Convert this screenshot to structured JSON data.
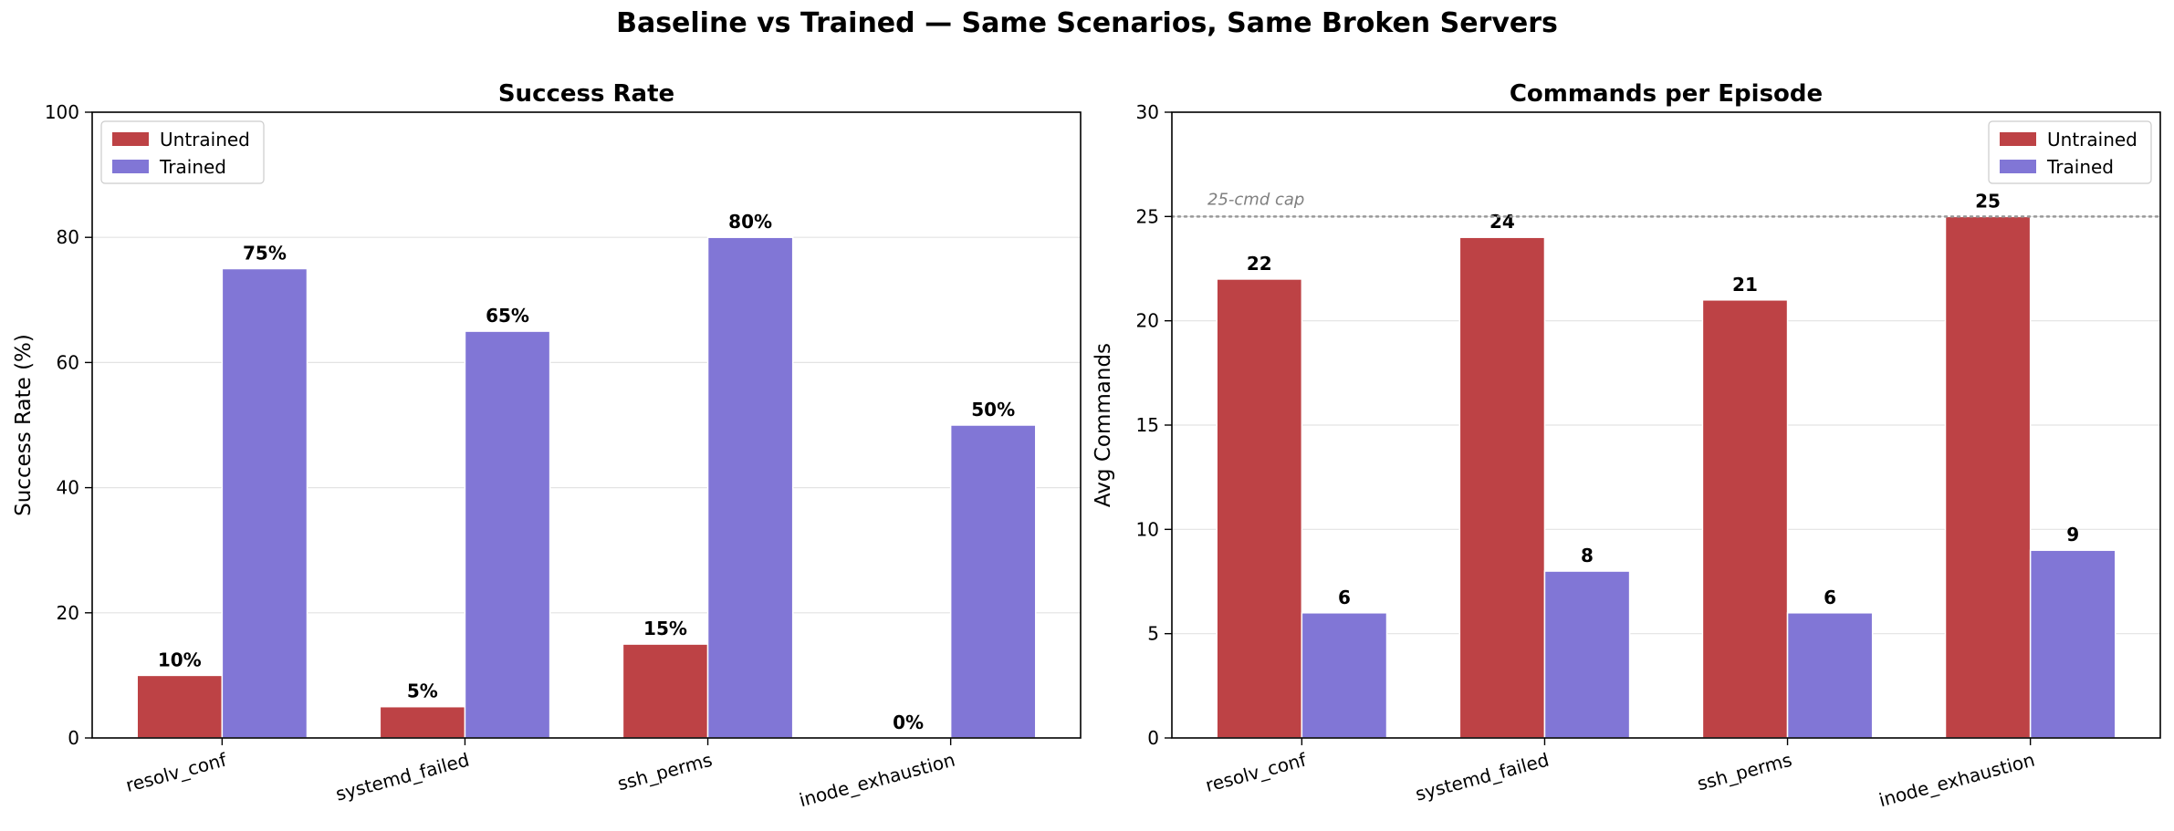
{
  "figure": {
    "suptitle": "Baseline vs Trained — Same Scenarios, Same Broken Servers"
  },
  "colors": {
    "untrained": "#bd4245",
    "trained": "#8176d6",
    "grid": "#e3e3e3",
    "cap_line": "#999999",
    "cap_text": "#808080"
  },
  "chart_data": [
    {
      "type": "bar",
      "title": "Success Rate",
      "xlabel": "",
      "ylabel": "Success Rate (%)",
      "categories": [
        "resolv_conf",
        "systemd_failed",
        "ssh_perms",
        "inode_exhaustion"
      ],
      "series": [
        {
          "name": "Untrained",
          "values": [
            10,
            5,
            15,
            0
          ],
          "labels": [
            "10%",
            "5%",
            "15%",
            "0%"
          ]
        },
        {
          "name": "Trained",
          "values": [
            75,
            65,
            80,
            50
          ],
          "labels": [
            "75%",
            "65%",
            "80%",
            "50%"
          ]
        }
      ],
      "ylim": [
        0,
        100
      ],
      "yticks": [
        0,
        20,
        40,
        60,
        80,
        100
      ],
      "ytick_labels": [
        "0",
        "20",
        "40",
        "60",
        "80",
        "100"
      ],
      "grid": "y",
      "legend": "upper-left"
    },
    {
      "type": "bar",
      "title": "Commands per Episode",
      "xlabel": "",
      "ylabel": "Avg Commands",
      "categories": [
        "resolv_conf",
        "systemd_failed",
        "ssh_perms",
        "inode_exhaustion"
      ],
      "series": [
        {
          "name": "Untrained",
          "values": [
            22,
            24,
            21,
            25
          ],
          "labels": [
            "22",
            "24",
            "21",
            "25"
          ]
        },
        {
          "name": "Trained",
          "values": [
            6,
            8,
            6,
            9
          ],
          "labels": [
            "6",
            "8",
            "6",
            "9"
          ]
        }
      ],
      "ylim": [
        0,
        30
      ],
      "yticks": [
        0,
        5,
        10,
        15,
        20,
        25,
        30
      ],
      "ytick_labels": [
        "0",
        "5",
        "10",
        "15",
        "20",
        "25",
        "30"
      ],
      "grid": "y",
      "legend": "upper-right",
      "reference_line": {
        "value": 25,
        "label": "25-cmd cap",
        "style": "dotted"
      }
    }
  ]
}
